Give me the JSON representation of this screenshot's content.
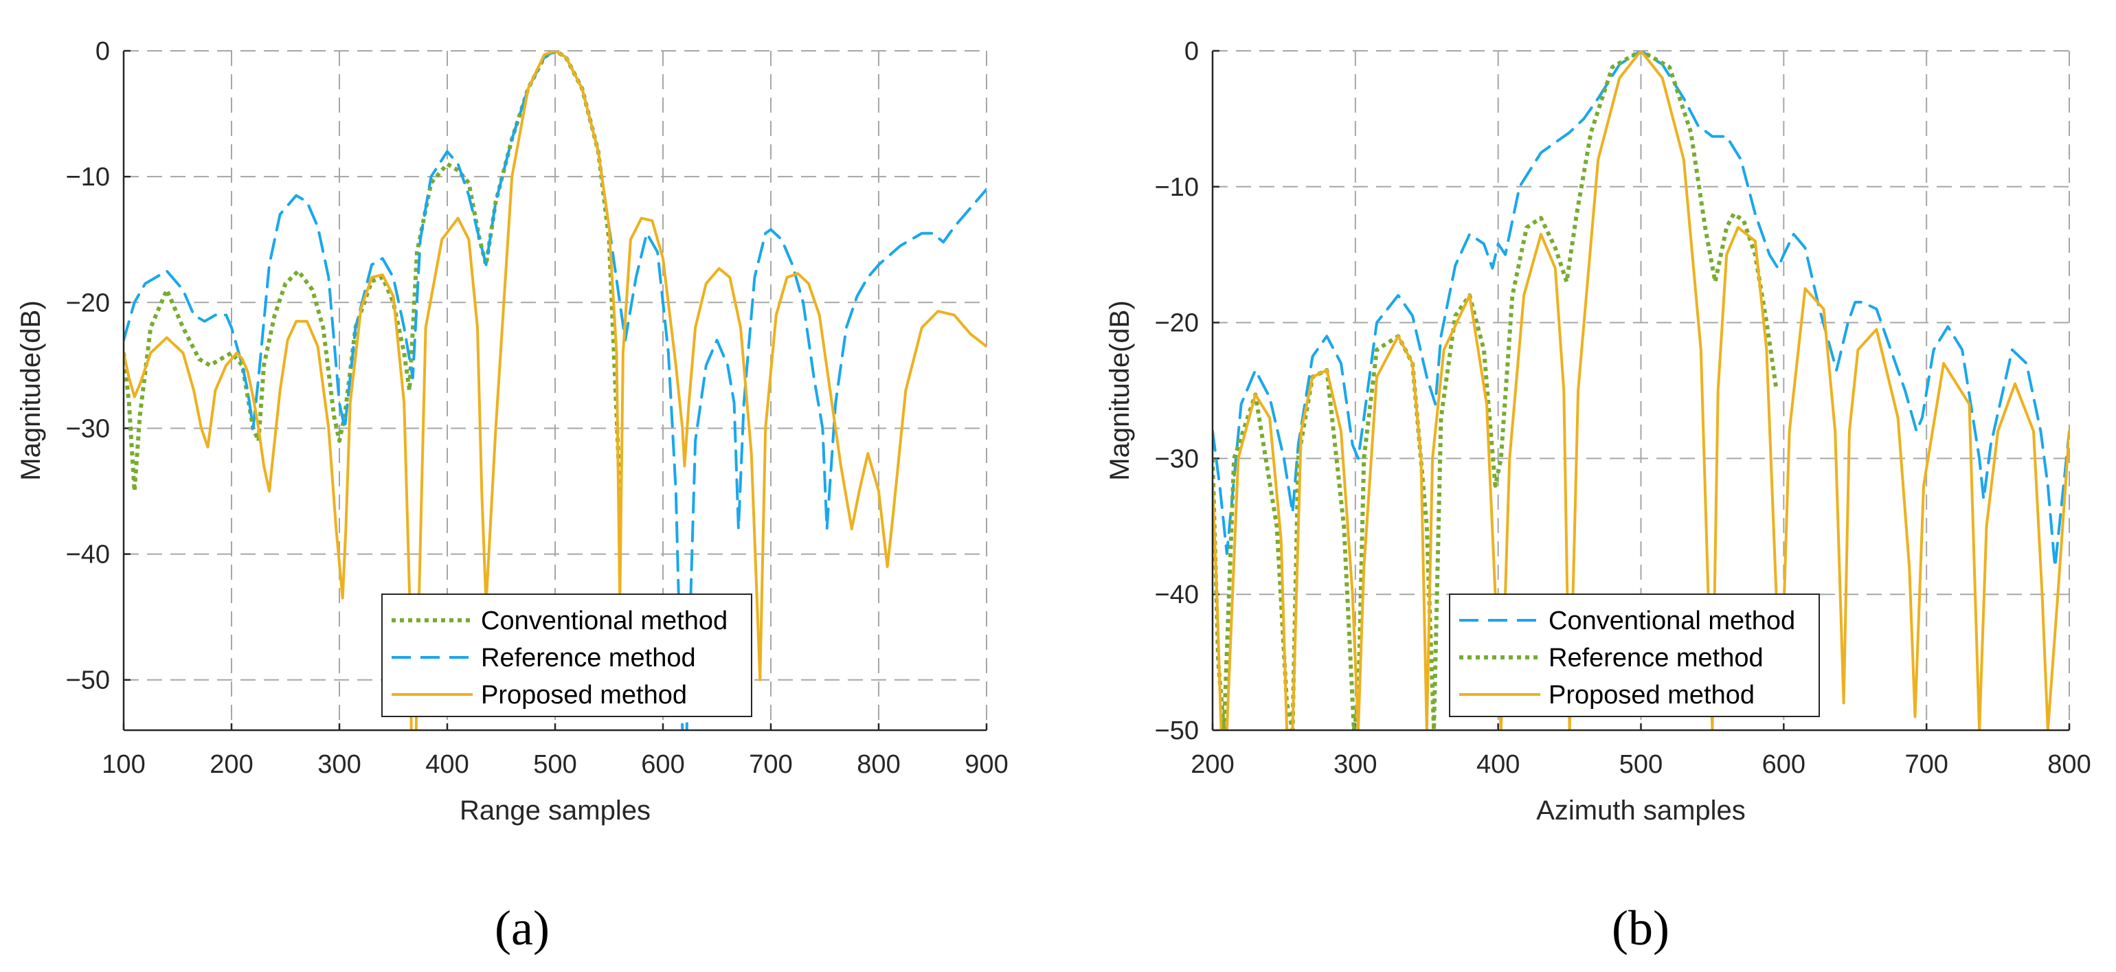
{
  "chart_data": [
    {
      "type": "line",
      "panel_label": "(a)",
      "xlabel": "Range samples",
      "ylabel": "Magnitude(dB)",
      "xlim": [
        100,
        900
      ],
      "ylim": [
        -54,
        0
      ],
      "xticks": [
        100,
        200,
        300,
        400,
        500,
        600,
        700,
        800,
        900
      ],
      "yticks": [
        0,
        -10,
        -20,
        -30,
        -40,
        -50
      ],
      "xtick_labels": [
        "100",
        "200",
        "300",
        "400",
        "500",
        "600",
        "700",
        "800",
        "900"
      ],
      "ytick_labels": [
        "0",
        "−10",
        "−20",
        "−30",
        "−40",
        "−50"
      ],
      "grid": true,
      "legend_position": "lower-center",
      "series": [
        {
          "name": "Conventional method",
          "color": "#77ac30",
          "style": "dotted",
          "x": [
            100,
            105,
            110,
            115,
            125,
            140,
            155,
            170,
            180,
            190,
            200,
            210,
            220,
            225,
            230,
            240,
            250,
            262,
            275,
            285,
            295,
            300,
            305,
            315,
            330,
            340,
            350,
            360,
            365,
            372,
            385,
            400,
            410,
            420,
            430,
            436,
            445,
            460,
            475,
            490,
            500,
            510,
            525,
            540,
            550,
            555,
            560
          ],
          "y": [
            -24,
            -28,
            -35,
            -29,
            -22,
            -19,
            -22,
            -24.5,
            -25,
            -24.5,
            -24,
            -25,
            -30,
            -31,
            -25,
            -21,
            -18.5,
            -17.5,
            -19,
            -22,
            -29,
            -31,
            -29,
            -22,
            -18.3,
            -18,
            -20,
            -24,
            -27,
            -16,
            -10.5,
            -9,
            -9.5,
            -10.5,
            -15,
            -17,
            -12,
            -7,
            -3,
            -0.5,
            0,
            -0.5,
            -3,
            -8,
            -15,
            -25,
            -35
          ]
        },
        {
          "name": "Reference method",
          "color": "#1aa7ec",
          "style": "dashed",
          "x": [
            100,
            110,
            120,
            140,
            155,
            165,
            175,
            185,
            195,
            200,
            210,
            215,
            220,
            225,
            235,
            245,
            260,
            270,
            280,
            290,
            296,
            300,
            305,
            315,
            330,
            340,
            350,
            360,
            368,
            375,
            385,
            400,
            410,
            420,
            430,
            436,
            445,
            460,
            475,
            490,
            500,
            510,
            525,
            540,
            550,
            560,
            565,
            575,
            585,
            595,
            605,
            612,
            615,
            620,
            630,
            640,
            650,
            660,
            666,
            670,
            675,
            685,
            695,
            700,
            710,
            720,
            730,
            740,
            748,
            752,
            760,
            770,
            780,
            790,
            800,
            820,
            840,
            850,
            860,
            870,
            880,
            890,
            900
          ],
          "y": [
            -23,
            -20,
            -18.5,
            -17.5,
            -19,
            -21,
            -21.5,
            -21,
            -21,
            -22,
            -25,
            -27,
            -30,
            -26,
            -17,
            -13,
            -11.5,
            -12,
            -14,
            -18,
            -24,
            -28,
            -30,
            -22,
            -17,
            -16.5,
            -18,
            -22,
            -26,
            -15,
            -10,
            -8,
            -9,
            -11.5,
            -15,
            -17,
            -12,
            -7,
            -3,
            -0.5,
            0,
            -0.5,
            -3,
            -8,
            -14,
            -20,
            -23,
            -18,
            -14.5,
            -16,
            -24,
            -35,
            -45,
            -60,
            -31,
            -25,
            -23,
            -25,
            -28,
            -38,
            -28,
            -18,
            -14.5,
            -14.2,
            -15,
            -17,
            -20,
            -26,
            -30,
            -38,
            -28,
            -22,
            -19.5,
            -18,
            -17,
            -15.5,
            -14.5,
            -14.5,
            -15.2,
            -14,
            -13,
            -12,
            -11
          ]
        },
        {
          "name": "Proposed method",
          "color": "#edb120",
          "style": "solid",
          "x": [
            100,
            105,
            110,
            115,
            125,
            140,
            155,
            165,
            172,
            178,
            185,
            195,
            205,
            210,
            215,
            220,
            225,
            230,
            235,
            240,
            245,
            252,
            260,
            270,
            280,
            290,
            297,
            303,
            306,
            310,
            320,
            330,
            340,
            350,
            360,
            366,
            368,
            372,
            380,
            395,
            410,
            420,
            428,
            432,
            436,
            445,
            460,
            475,
            490,
            500,
            510,
            525,
            540,
            550,
            557,
            560,
            563,
            570,
            580,
            590,
            600,
            612,
            618,
            620,
            624,
            630,
            640,
            652,
            662,
            672,
            682,
            690,
            692,
            695,
            705,
            715,
            725,
            735,
            745,
            755,
            765,
            775,
            782,
            790,
            800,
            808,
            812,
            825,
            840,
            855,
            870,
            885,
            900
          ],
          "y": [
            -24,
            -26,
            -27.5,
            -26.5,
            -24,
            -22.8,
            -24,
            -27,
            -30,
            -31.5,
            -27,
            -25,
            -24,
            -24.5,
            -25.5,
            -27.5,
            -30,
            -33,
            -35,
            -31,
            -27,
            -23,
            -21.5,
            -21.5,
            -23.5,
            -30,
            -38,
            -43.5,
            -38,
            -28,
            -20.5,
            -18,
            -17.8,
            -19.5,
            -28,
            -46,
            -70,
            -50,
            -22,
            -15,
            -13.3,
            -15,
            -22,
            -35,
            -44,
            -30,
            -10,
            -3,
            -0.3,
            0,
            -0.5,
            -3,
            -8,
            -14,
            -24,
            -44,
            -24,
            -15,
            -13.3,
            -13.5,
            -16.5,
            -25,
            -30,
            -33,
            -28,
            -22,
            -18.5,
            -17.3,
            -18,
            -22,
            -32,
            -50,
            -42,
            -30,
            -21,
            -18,
            -17.7,
            -18.5,
            -21,
            -27,
            -33,
            -38,
            -35,
            -32,
            -35,
            -41,
            -38,
            -27,
            -22,
            -20.7,
            -21,
            -22.5,
            -23.5
          ]
        }
      ]
    },
    {
      "type": "line",
      "panel_label": "(b)",
      "xlabel": "Azimuth samples",
      "ylabel": "Magnitude(dB)",
      "xlim": [
        200,
        800
      ],
      "ylim": [
        -50,
        0
      ],
      "xticks": [
        200,
        300,
        400,
        500,
        600,
        700,
        800
      ],
      "yticks": [
        0,
        -10,
        -20,
        -30,
        -40,
        -50
      ],
      "xtick_labels": [
        "200",
        "300",
        "400",
        "500",
        "600",
        "700",
        "800"
      ],
      "ytick_labels": [
        "0",
        "−10",
        "−20",
        "−30",
        "−40",
        "−50"
      ],
      "grid": true,
      "legend_position": "lower-center",
      "series": [
        {
          "name": "Conventional method",
          "color": "#1aa7ec",
          "style": "dashed",
          "x": [
            200,
            205,
            210,
            220,
            230,
            240,
            250,
            256,
            260,
            270,
            280,
            290,
            298,
            302,
            306,
            315,
            330,
            340,
            350,
            356,
            360,
            370,
            380,
            390,
            396,
            400,
            405,
            415,
            430,
            450,
            460,
            470,
            485,
            500,
            515,
            530,
            540,
            550,
            560,
            570,
            580,
            590,
            596,
            600,
            607,
            615,
            625,
            637,
            645,
            650,
            655,
            665,
            675,
            685,
            693,
            697,
            705,
            715,
            725,
            737,
            740,
            745,
            760,
            770,
            780,
            785,
            790,
            800
          ],
          "y": [
            -28,
            -32,
            -37,
            -26,
            -23.5,
            -25.5,
            -30,
            -34,
            -29,
            -22.5,
            -21,
            -23,
            -29,
            -30,
            -27,
            -20,
            -18,
            -19.5,
            -24,
            -26,
            -21,
            -15.8,
            -13.5,
            -14.2,
            -16,
            -14.2,
            -15,
            -10,
            -7.5,
            -6,
            -5,
            -3.5,
            -1,
            0,
            -1,
            -3.5,
            -5.5,
            -6.3,
            -6.3,
            -8,
            -12,
            -15,
            -16,
            -15,
            -13.5,
            -14.5,
            -19,
            -23.5,
            -20,
            -18.5,
            -18.5,
            -19,
            -22,
            -25,
            -28,
            -27,
            -22,
            -20.3,
            -22,
            -30,
            -33,
            -29,
            -22,
            -23,
            -28,
            -32,
            -38,
            -28
          ]
        },
        {
          "name": "Reference method",
          "color": "#77ac30",
          "style": "dotted",
          "x": [
            200,
            204,
            208,
            215,
            230,
            245,
            252,
            256,
            260,
            270,
            280,
            292,
            299,
            302,
            306,
            315,
            330,
            340,
            350,
            355,
            360,
            370,
            380,
            390,
            398,
            402,
            410,
            420,
            430,
            440,
            448,
            455,
            465,
            480,
            500,
            520,
            535,
            545,
            552,
            560,
            565,
            572,
            580,
            588,
            595
          ],
          "y": [
            -30,
            -45,
            -50,
            -30,
            -25.3,
            -35,
            -48,
            -50,
            -30,
            -24,
            -23.5,
            -35,
            -50,
            -48,
            -30,
            -22,
            -21,
            -23,
            -35,
            -50,
            -27,
            -19.5,
            -18,
            -22,
            -32,
            -30,
            -18,
            -13,
            -12.3,
            -14.5,
            -17,
            -12,
            -6,
            -1.2,
            0,
            -1.2,
            -6,
            -13,
            -17,
            -13,
            -12,
            -12.5,
            -15,
            -20,
            -25
          ]
        },
        {
          "name": "Proposed method",
          "color": "#edb120",
          "style": "solid",
          "x": [
            200,
            203,
            206,
            210,
            218,
            230,
            240,
            248,
            252,
            256,
            262,
            270,
            280,
            290,
            298,
            302,
            306,
            315,
            330,
            340,
            346,
            350,
            354,
            362,
            380,
            392,
            398,
            402,
            408,
            418,
            430,
            440,
            446,
            450,
            456,
            470,
            485,
            500,
            515,
            530,
            542,
            550,
            554,
            560,
            568,
            580,
            588,
            594,
            598,
            604,
            615,
            628,
            636,
            642,
            646,
            652,
            665,
            680,
            688,
            692,
            698,
            712,
            730,
            737,
            742,
            750,
            762,
            775,
            781,
            785,
            792,
            800
          ],
          "y": [
            -32,
            -40,
            -50,
            -50,
            -30,
            -25.3,
            -27,
            -36,
            -50,
            -50,
            -28,
            -24,
            -23.5,
            -28,
            -40,
            -50,
            -38,
            -24,
            -21,
            -23,
            -30,
            -50,
            -30,
            -22,
            -18,
            -26,
            -40,
            -50,
            -30,
            -18,
            -13.5,
            -16,
            -25,
            -50,
            -25,
            -8,
            -2,
            0,
            -2,
            -8,
            -22,
            -50,
            -25,
            -15,
            -13,
            -14,
            -22,
            -38,
            -48,
            -28,
            -17.5,
            -19,
            -28,
            -48,
            -28,
            -22,
            -20.5,
            -27,
            -38,
            -49,
            -32,
            -23,
            -26,
            -50,
            -35,
            -28,
            -24.5,
            -28,
            -40,
            -50,
            -40,
            -28
          ]
        }
      ]
    }
  ]
}
